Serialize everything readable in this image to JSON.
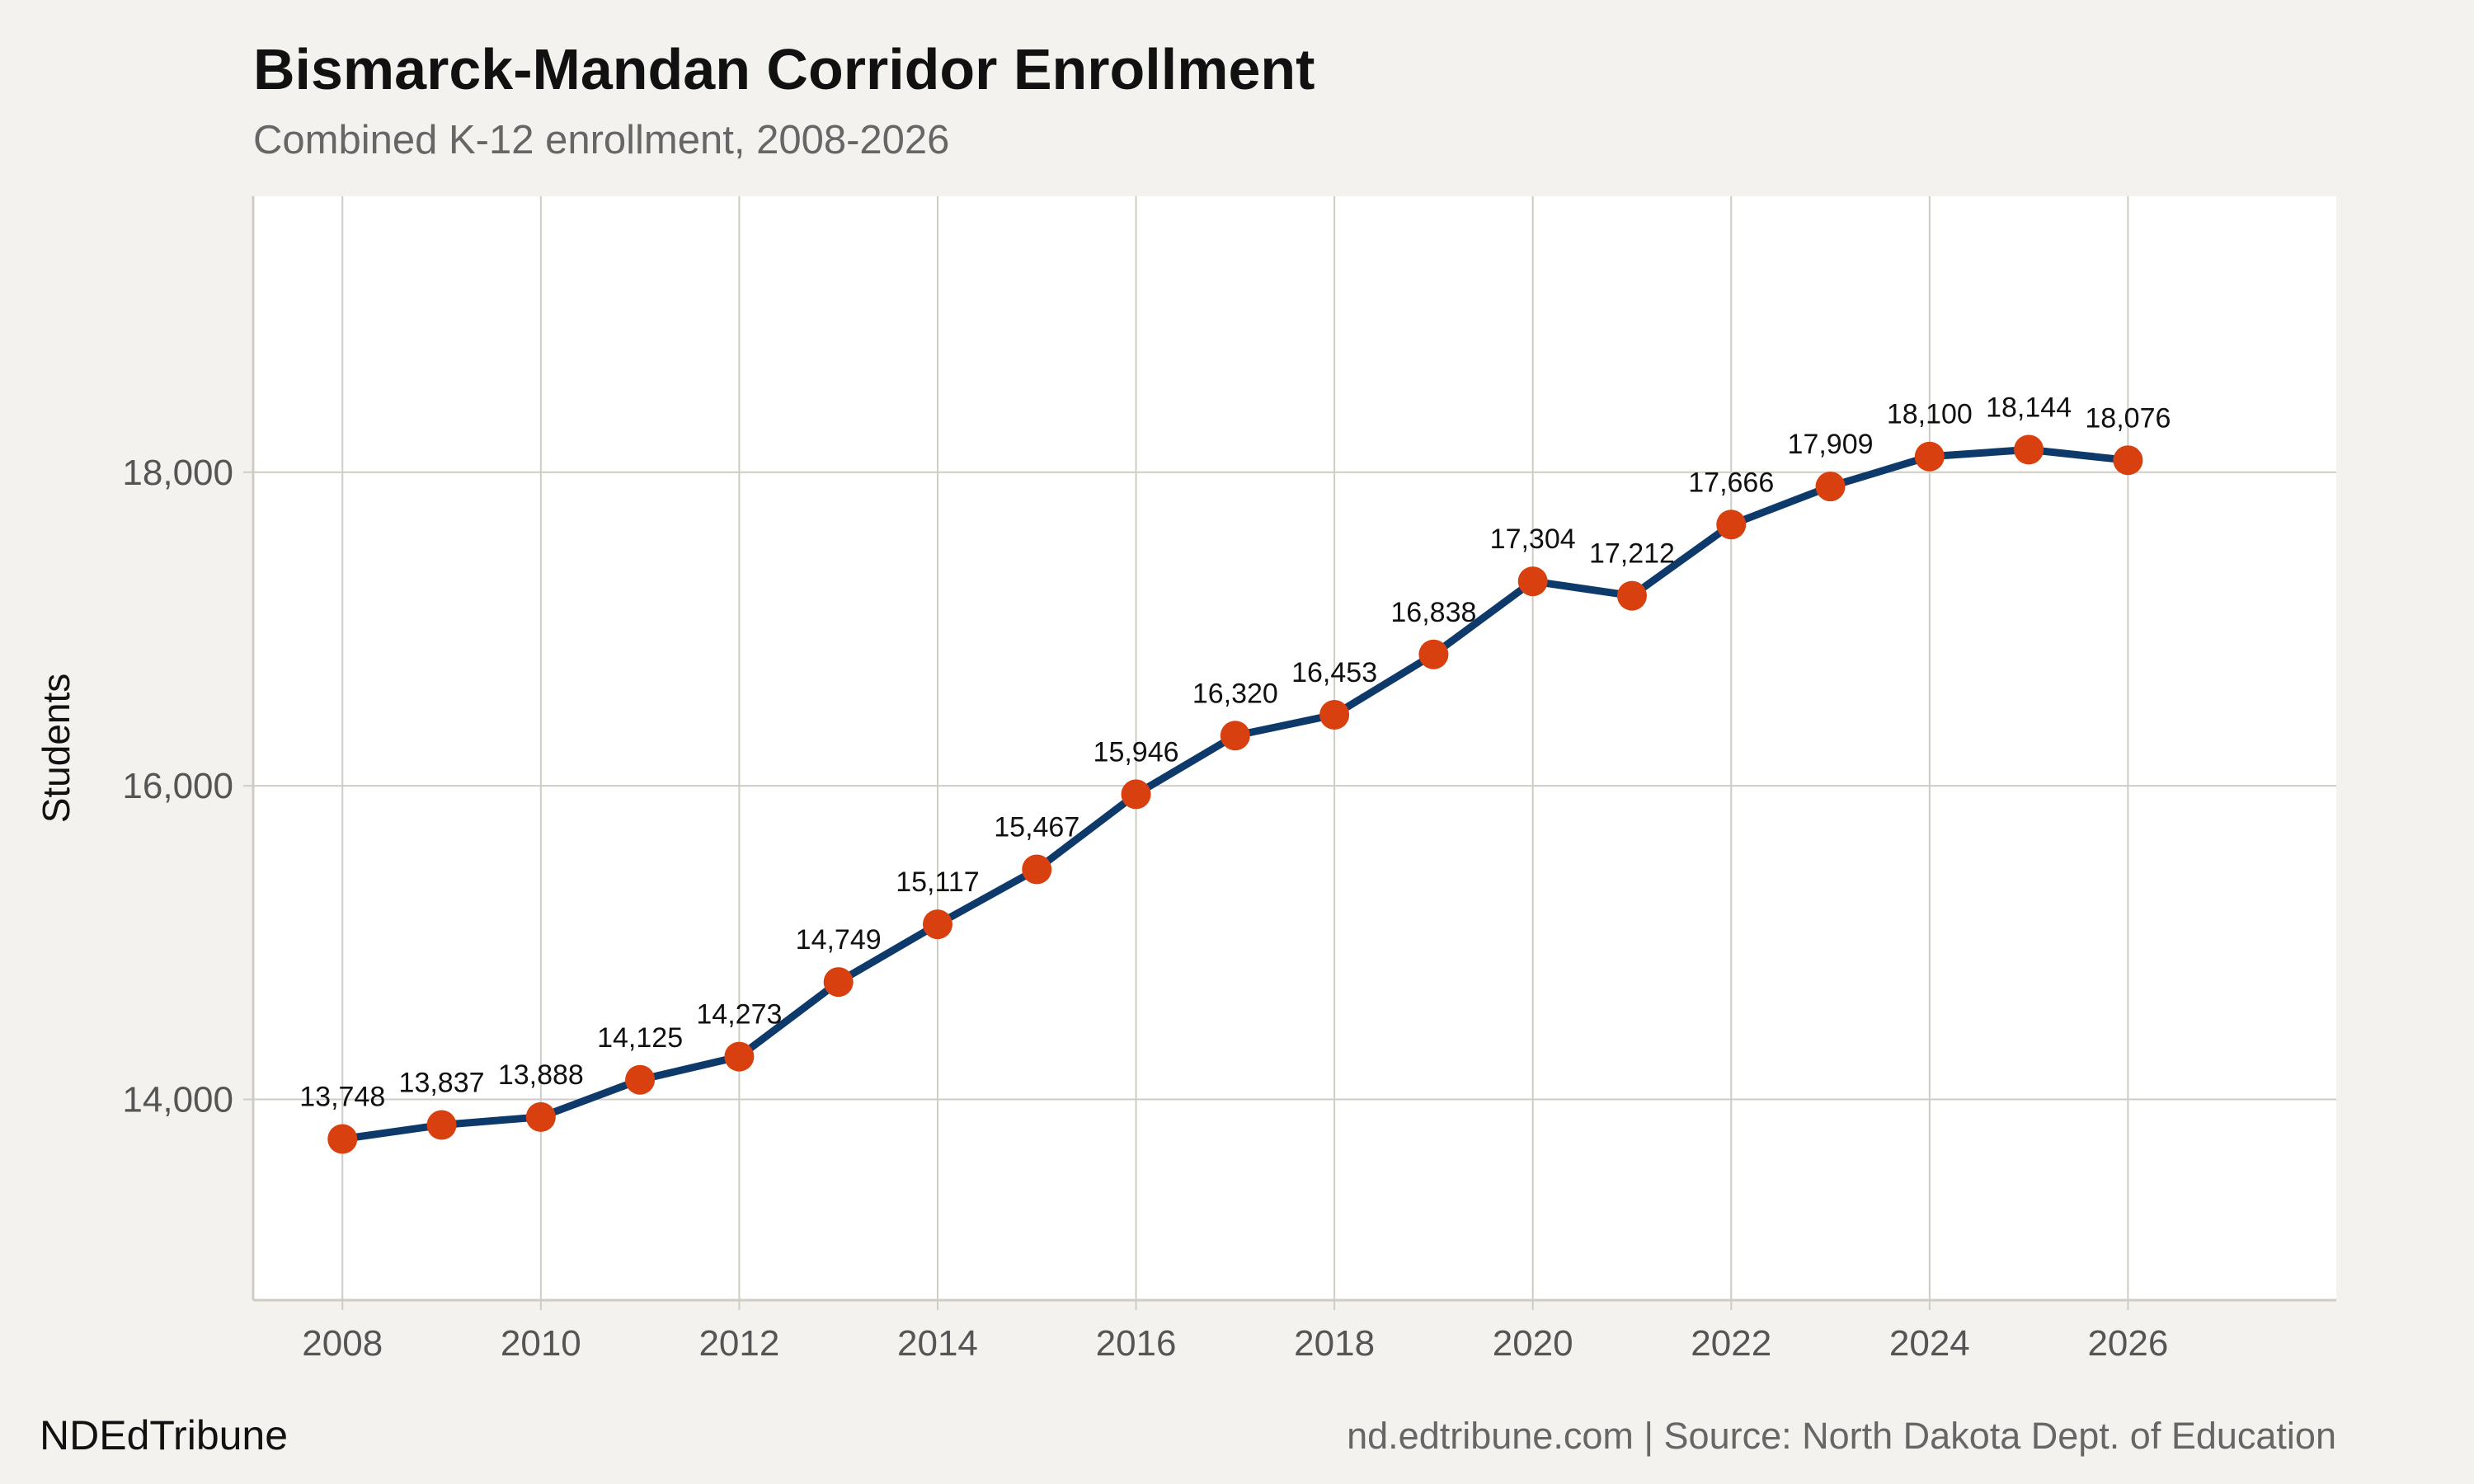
{
  "header": {
    "title": "Bismarck-Mandan Corridor Enrollment",
    "subtitle": "Combined K-12 enrollment, 2008-2026"
  },
  "footer": {
    "brand": "NDEdTribune",
    "source": "nd.edtribune.com | Source: North Dakota Dept. of Education"
  },
  "colors": {
    "line": "#0d3a6b",
    "marker": "#d9400f",
    "grid": "#cfccc4",
    "panel": "#ffffff",
    "background": "#f4f2ee"
  },
  "chart_data": {
    "type": "line",
    "title": "Bismarck-Mandan Corridor Enrollment",
    "subtitle": "Combined K-12 enrollment, 2008-2026",
    "xlabel": "",
    "ylabel": "Students",
    "x": [
      2008,
      2009,
      2010,
      2011,
      2012,
      2013,
      2014,
      2015,
      2016,
      2017,
      2018,
      2019,
      2020,
      2021,
      2022,
      2023,
      2024,
      2025,
      2026
    ],
    "series": [
      {
        "values": [
          13748,
          13837,
          13888,
          14125,
          14273,
          14749,
          15117,
          15467,
          15946,
          16320,
          16453,
          16838,
          17304,
          17212,
          17666,
          17909,
          18100,
          18144,
          18076
        ]
      }
    ],
    "data_labels": [
      "13,748",
      "13,837",
      "13,888",
      "14,125",
      "14,273",
      "14,749",
      "15,117",
      "15,467",
      "15,946",
      "16,320",
      "16,453",
      "16,838",
      "17,304",
      "17,212",
      "17,666",
      "17,909",
      "18,100",
      "18,144",
      "18,076"
    ],
    "xticks": [
      "2008",
      "2010",
      "2012",
      "2014",
      "2016",
      "2018",
      "2020",
      "2022",
      "2024",
      "2026"
    ],
    "yticks": [
      "14,000",
      "16,000",
      "18,000"
    ],
    "xlim": [
      2007.1,
      2028.1
    ],
    "ylim": [
      12720,
      19760
    ],
    "grid": true,
    "legend": "none"
  }
}
